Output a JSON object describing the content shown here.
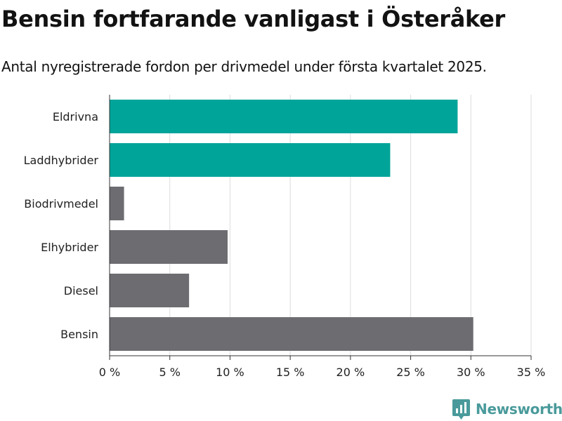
{
  "header": {
    "title": "Bensin fortfarande vanligast i Österåker",
    "subtitle": "Antal nyregistrerade fordon per drivmedel under första kvartalet 2025."
  },
  "brand": {
    "name": "Newsworthy"
  },
  "chart_data": {
    "type": "bar",
    "orientation": "horizontal",
    "title": "",
    "xlabel": "",
    "ylabel": "",
    "categories": [
      "Eldrivna",
      "Laddhybrider",
      "Biodrivmedel",
      "Elhybrider",
      "Diesel",
      "Bensin"
    ],
    "values": [
      28.9,
      23.3,
      1.2,
      9.8,
      6.6,
      30.2
    ],
    "bar_colors": [
      "#00a499",
      "#00a499",
      "#6d6c71",
      "#6d6c71",
      "#6d6c71",
      "#6d6c71"
    ],
    "xlim": [
      0,
      35
    ],
    "xticks": [
      0,
      5,
      10,
      15,
      20,
      25,
      30,
      35
    ],
    "xtick_labels": [
      "0 %",
      "5 %",
      "10 %",
      "15 %",
      "20 %",
      "25 %",
      "30 %",
      "35 %"
    ],
    "grid": "vertical",
    "legend": "none",
    "colors": {
      "accent": "#00a499",
      "neutral": "#6d6c71",
      "grid": "#dddddd",
      "axis": "#333333",
      "brand": "#4a9a9b"
    }
  }
}
